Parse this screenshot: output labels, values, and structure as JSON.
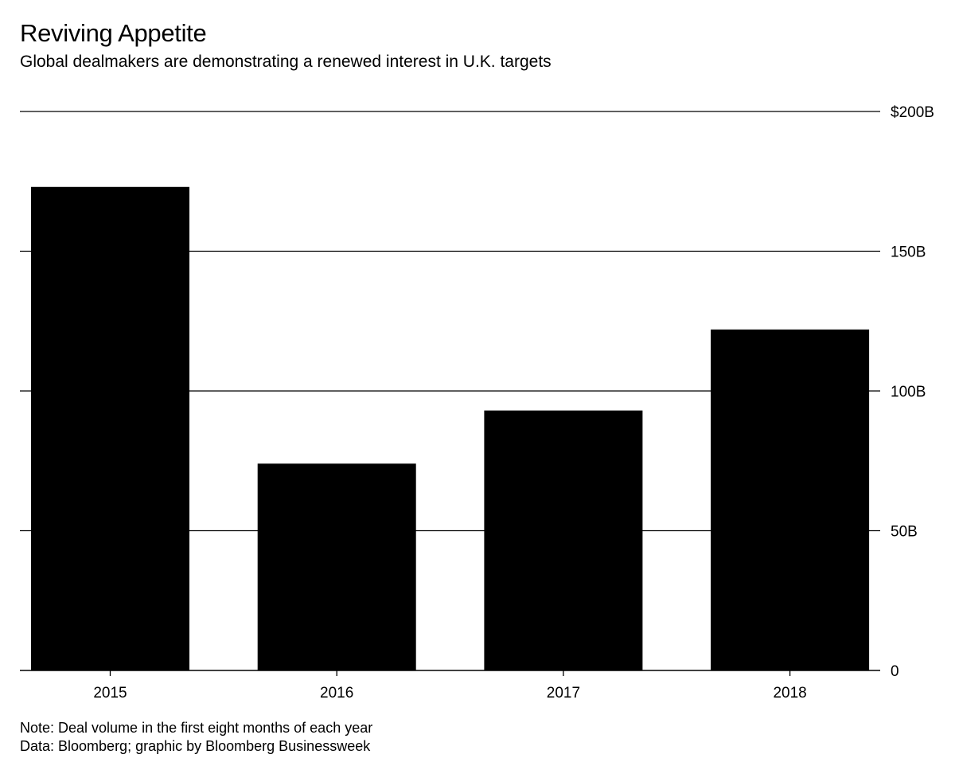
{
  "header": {
    "title": "Reviving Appetite",
    "subtitle": "Global dealmakers are demonstrating a renewed interest in U.K. targets"
  },
  "footer": {
    "note": "Note: Deal volume in the first eight months of each year",
    "source": "Data: Bloomberg; graphic by Bloomberg Businessweek"
  },
  "chart_data": {
    "type": "bar",
    "categories": [
      "2015",
      "2016",
      "2017",
      "2018"
    ],
    "values": [
      173,
      74,
      93,
      122
    ],
    "ylim": [
      0,
      200
    ],
    "yticks": [
      0,
      50,
      100,
      150,
      200
    ],
    "ytick_labels": [
      "0",
      "50B",
      "100B",
      "150B",
      "$200B"
    ],
    "grid": true,
    "yaxis_position": "right",
    "bar_color": "#000000",
    "grid_color": "#000000"
  }
}
